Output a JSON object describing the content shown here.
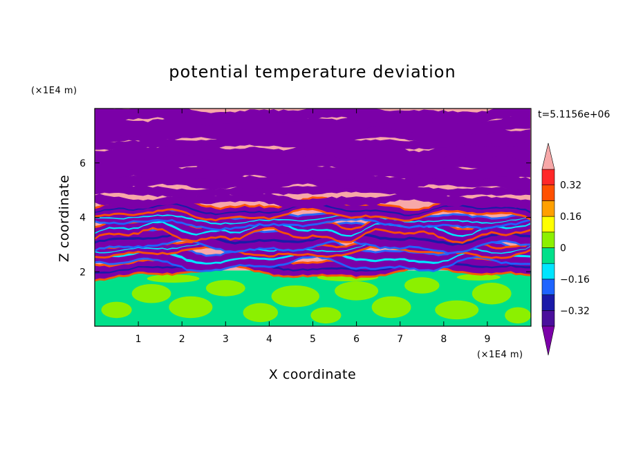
{
  "chart_data": {
    "type": "heatmap",
    "title": "potential temperature deviation",
    "xlabel": "X coordinate",
    "ylabel": "Z coordinate",
    "x_unit": "(×1E4 m)",
    "y_unit": "(×1E4 m)",
    "time_label": "t=5.1156e+06",
    "xlim": [
      0,
      10
    ],
    "ylim": [
      0,
      8
    ],
    "x_ticks": [
      "1",
      "2",
      "3",
      "4",
      "5",
      "6",
      "7",
      "8",
      "9"
    ],
    "y_ticks": [
      "2",
      "4",
      "6"
    ],
    "colorbar": {
      "levels": [
        -0.4,
        -0.32,
        -0.24,
        -0.16,
        -0.08,
        0,
        0.08,
        0.16,
        0.24,
        0.32,
        0.4
      ],
      "tick_labels": [
        "0.32",
        "0.16",
        "0",
        "−0.16",
        "−0.32"
      ],
      "tick_values": [
        0.32,
        0.16,
        0,
        -0.16,
        -0.32
      ],
      "colors": [
        "#7b00a8",
        "#4a0f9c",
        "#1a1aa8",
        "#1e64ff",
        "#00e5ff",
        "#00e08a",
        "#8cf000",
        "#ffff00",
        "#ffa000",
        "#ff5000",
        "#ff2828",
        "#f7a8a8"
      ]
    },
    "field_description": "Below z≈2: values near 0 (green / lime patches). Above z≈2: alternating horizontal layers of strong negative (purple) and strong positive (pink) deviation with thin multicolour transition bands, most turbulent between z≈2 and z≈4.5."
  }
}
